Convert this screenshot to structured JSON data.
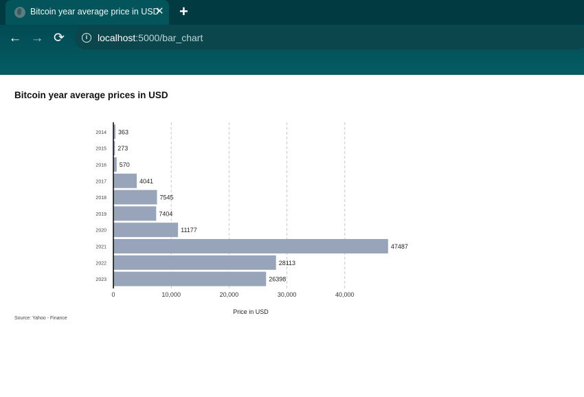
{
  "browser": {
    "tab_title": "Bitcoin year average price in USD",
    "tab_close": "✕",
    "new_tab": "+",
    "back": "←",
    "forward": "→",
    "reload": "⟳",
    "url_host": "localhost",
    "url_path": ":5000/bar_chart"
  },
  "chart_data": {
    "type": "bar",
    "orientation": "horizontal",
    "title": "Bitcoin year average prices in USD",
    "xlabel": "Price in USD",
    "ylabel": "",
    "categories": [
      "2014",
      "2015",
      "2016",
      "2017",
      "2018",
      "2019",
      "2020",
      "2021",
      "2022",
      "2023"
    ],
    "values": [
      363,
      273,
      570,
      4041,
      7545,
      7404,
      11177,
      47487,
      28113,
      26398
    ],
    "xlim": [
      0,
      47487
    ],
    "xticks": [
      0,
      10000,
      20000,
      30000,
      40000
    ],
    "xtick_labels": [
      "0",
      "10,000",
      "20,000",
      "30,000",
      "40,000"
    ],
    "grid": "vertical dashed",
    "bar_color": "#97a4b9",
    "source": "Source: Yahoo - Finance"
  }
}
